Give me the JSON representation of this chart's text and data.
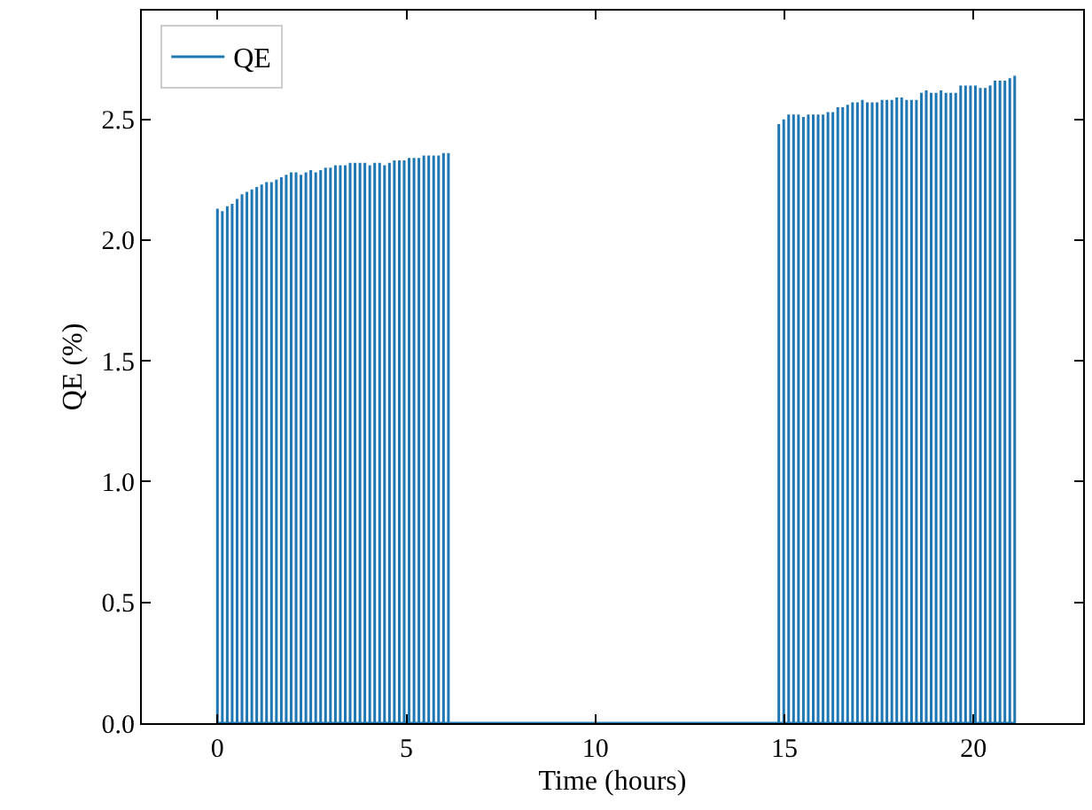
{
  "chart_data": {
    "type": "step",
    "xlabel": "Time (hours)",
    "ylabel": "QE (%)",
    "xlim": [
      -2,
      22.9
    ],
    "ylim": [
      0,
      2.95
    ],
    "xticks": [
      0,
      5,
      10,
      15,
      20
    ],
    "yticks": [
      {
        "value": 0,
        "label": "0.0"
      },
      {
        "value": 0.5,
        "label": "0.5"
      },
      {
        "value": 1,
        "label": "1.0"
      },
      {
        "value": 1.5,
        "label": "1.5"
      },
      {
        "value": 2,
        "label": "2.0"
      },
      {
        "value": 2.5,
        "label": "2.5"
      }
    ],
    "legend": "top left",
    "marker": "none",
    "line_style": "solid",
    "series": [
      {
        "name": "QE",
        "color": "#1f77b4",
        "x": [
          0,
          0,
          0.13,
          0.13,
          0.26,
          0.26,
          0.39,
          0.39,
          0.52,
          0.52,
          0.65,
          0.65,
          0.78,
          0.78,
          0.91,
          0.91,
          1.04,
          1.04,
          1.17,
          1.17,
          1.3,
          1.3,
          1.43,
          1.43,
          1.56,
          1.56,
          1.69,
          1.69,
          1.82,
          1.82,
          1.95,
          1.95,
          2.08,
          2.08,
          2.21,
          2.21,
          2.34,
          2.34,
          2.47,
          2.47,
          2.6,
          2.6,
          2.73,
          2.73,
          2.86,
          2.86,
          2.99,
          2.99,
          3.12,
          3.12,
          3.25,
          3.25,
          3.38,
          3.38,
          3.51,
          3.51,
          3.64,
          3.64,
          3.77,
          3.77,
          3.9,
          3.9,
          4.03,
          4.03,
          4.16,
          4.16,
          4.29,
          4.29,
          4.42,
          4.42,
          4.55,
          4.55,
          4.68,
          4.68,
          4.81,
          4.81,
          4.94,
          4.94,
          5.07,
          5.07,
          5.2,
          5.2,
          5.33,
          5.33,
          5.46,
          5.46,
          5.59,
          5.59,
          5.72,
          5.72,
          5.85,
          5.85,
          5.98,
          5.98,
          6.11,
          6.11,
          14.85,
          14.85,
          14.98,
          14.98,
          15.11,
          15.11,
          15.24,
          15.24,
          15.37,
          15.37,
          15.5,
          15.5,
          15.63,
          15.63,
          15.76,
          15.76,
          15.89,
          15.89,
          16.02,
          16.02,
          16.15,
          16.15,
          16.28,
          16.28,
          16.41,
          16.41,
          16.54,
          16.54,
          16.67,
          16.67,
          16.8,
          16.8,
          16.93,
          16.93,
          17.06,
          17.06,
          17.19,
          17.19,
          17.32,
          17.32,
          17.45,
          17.45,
          17.58,
          17.58,
          17.71,
          17.71,
          17.84,
          17.84,
          17.97,
          17.97,
          18.1,
          18.1,
          18.23,
          18.23,
          18.36,
          18.36,
          18.49,
          18.49,
          18.62,
          18.62,
          18.75,
          18.75,
          18.88,
          18.88,
          19.01,
          19.01,
          19.14,
          19.14,
          19.27,
          19.27,
          19.4,
          19.4,
          19.53,
          19.53,
          19.66,
          19.66,
          19.79,
          19.79,
          19.92,
          19.92,
          20.05,
          20.05,
          20.18,
          20.18,
          20.31,
          20.31,
          20.44,
          20.44,
          20.57,
          20.57,
          20.7,
          20.7,
          20.83,
          20.83,
          20.96,
          20.96,
          21.09,
          21.09,
          21.09
        ],
        "values": [
          0,
          2.13,
          0,
          2.12,
          0,
          2.14,
          0,
          2.15,
          0,
          2.17,
          0,
          2.19,
          0,
          2.2,
          0,
          2.21,
          0,
          2.22,
          0,
          2.23,
          0,
          2.24,
          0,
          2.24,
          0,
          2.25,
          0,
          2.26,
          0,
          2.27,
          0,
          2.28,
          0,
          2.28,
          0,
          2.27,
          0,
          2.28,
          0,
          2.29,
          0,
          2.28,
          0,
          2.29,
          0,
          2.3,
          0,
          2.3,
          0,
          2.31,
          0,
          2.31,
          0,
          2.31,
          0,
          2.32,
          0,
          2.32,
          0,
          2.32,
          0,
          2.32,
          0,
          2.31,
          0,
          2.32,
          0,
          2.32,
          0,
          2.31,
          0,
          2.32,
          0,
          2.33,
          0,
          2.33,
          0,
          2.33,
          0,
          2.34,
          0,
          2.34,
          0,
          2.34,
          0,
          2.35,
          0,
          2.35,
          0,
          2.35,
          0,
          2.35,
          0,
          2.36,
          0,
          2.36,
          0,
          2.48,
          0,
          2.5,
          0,
          2.52,
          0,
          2.52,
          0,
          2.52,
          0,
          2.51,
          0,
          2.52,
          0,
          2.52,
          0,
          2.52,
          0,
          2.52,
          0,
          2.53,
          0,
          2.53,
          0,
          2.55,
          0,
          2.55,
          0,
          2.56,
          0,
          2.57,
          0,
          2.57,
          0,
          2.58,
          0,
          2.57,
          0,
          2.57,
          0,
          2.57,
          0,
          2.58,
          0,
          2.58,
          0,
          2.58,
          0,
          2.59,
          0,
          2.59,
          0,
          2.58,
          0,
          2.58,
          0,
          2.58,
          0,
          2.61,
          0,
          2.62,
          0,
          2.61,
          0,
          2.61,
          0,
          2.62,
          0,
          2.61,
          0,
          2.61,
          0,
          2.61,
          0,
          2.64,
          0,
          2.64,
          0,
          2.64,
          0,
          2.64,
          0,
          2.63,
          0,
          2.63,
          0,
          2.64,
          0,
          2.66,
          0,
          2.66,
          0,
          2.66,
          0,
          2.67,
          0,
          2.68,
          0
        ]
      }
    ]
  }
}
